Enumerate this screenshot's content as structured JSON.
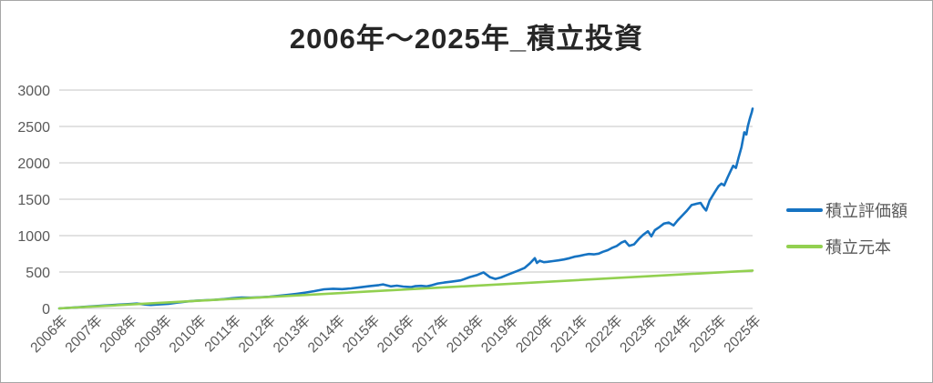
{
  "title": "2006年～2025年_積立投資",
  "legend": {
    "items": [
      {
        "label": "積立評価額",
        "color": "#1673C2"
      },
      {
        "label": "積立元本",
        "color": "#92D050"
      }
    ]
  },
  "chart_data": {
    "type": "line",
    "title": "2006年～2025年_積立投資",
    "xlabel": "",
    "ylabel": "",
    "ylim": [
      0,
      3000
    ],
    "yticks": [
      0,
      500,
      1000,
      1500,
      2000,
      2500,
      3000
    ],
    "xtick_labels": [
      "2006年",
      "2007年",
      "2008年",
      "2009年",
      "2010年",
      "2011年",
      "2012年",
      "2013年",
      "2014年",
      "2015年",
      "2016年",
      "2017年",
      "2018年",
      "2019年",
      "2020年",
      "2021年",
      "2022年",
      "2023年",
      "2024年",
      "2025年",
      "2025年"
    ],
    "grid": true,
    "legend_position": "right",
    "gridline_color": "#d9d9d9",
    "axis_text_color": "#595959",
    "series": [
      {
        "name": "積立評価額",
        "color": "#1673C2",
        "stroke_width": 2.6,
        "points": [
          [
            0.0,
            0
          ],
          [
            0.026,
            15
          ],
          [
            0.053,
            32
          ],
          [
            0.079,
            48
          ],
          [
            0.105,
            62
          ],
          [
            0.112,
            66
          ],
          [
            0.125,
            52
          ],
          [
            0.132,
            48
          ],
          [
            0.145,
            55
          ],
          [
            0.158,
            62
          ],
          [
            0.171,
            80
          ],
          [
            0.184,
            95
          ],
          [
            0.197,
            105
          ],
          [
            0.211,
            112
          ],
          [
            0.224,
            118
          ],
          [
            0.237,
            128
          ],
          [
            0.25,
            140
          ],
          [
            0.263,
            150
          ],
          [
            0.276,
            148
          ],
          [
            0.289,
            152
          ],
          [
            0.303,
            160
          ],
          [
            0.316,
            172
          ],
          [
            0.329,
            185
          ],
          [
            0.342,
            200
          ],
          [
            0.355,
            218
          ],
          [
            0.368,
            238
          ],
          [
            0.382,
            262
          ],
          [
            0.395,
            270
          ],
          [
            0.408,
            265
          ],
          [
            0.421,
            275
          ],
          [
            0.434,
            290
          ],
          [
            0.447,
            305
          ],
          [
            0.461,
            320
          ],
          [
            0.467,
            330
          ],
          [
            0.478,
            302
          ],
          [
            0.487,
            312
          ],
          [
            0.496,
            300
          ],
          [
            0.507,
            293
          ],
          [
            0.513,
            305
          ],
          [
            0.522,
            310
          ],
          [
            0.53,
            303
          ],
          [
            0.538,
            320
          ],
          [
            0.546,
            342
          ],
          [
            0.555,
            355
          ],
          [
            0.566,
            368
          ],
          [
            0.579,
            385
          ],
          [
            0.592,
            430
          ],
          [
            0.603,
            460
          ],
          [
            0.612,
            495
          ],
          [
            0.621,
            430
          ],
          [
            0.629,
            405
          ],
          [
            0.637,
            425
          ],
          [
            0.645,
            455
          ],
          [
            0.654,
            490
          ],
          [
            0.662,
            520
          ],
          [
            0.671,
            555
          ],
          [
            0.679,
            620
          ],
          [
            0.686,
            690
          ],
          [
            0.689,
            625
          ],
          [
            0.693,
            655
          ],
          [
            0.699,
            635
          ],
          [
            0.704,
            640
          ],
          [
            0.712,
            650
          ],
          [
            0.72,
            660
          ],
          [
            0.728,
            672
          ],
          [
            0.736,
            690
          ],
          [
            0.743,
            710
          ],
          [
            0.751,
            722
          ],
          [
            0.758,
            738
          ],
          [
            0.764,
            748
          ],
          [
            0.771,
            742
          ],
          [
            0.778,
            752
          ],
          [
            0.784,
            778
          ],
          [
            0.791,
            800
          ],
          [
            0.797,
            830
          ],
          [
            0.804,
            858
          ],
          [
            0.811,
            905
          ],
          [
            0.816,
            925
          ],
          [
            0.822,
            860
          ],
          [
            0.829,
            880
          ],
          [
            0.836,
            955
          ],
          [
            0.842,
            1010
          ],
          [
            0.849,
            1060
          ],
          [
            0.854,
            990
          ],
          [
            0.859,
            1075
          ],
          [
            0.866,
            1120
          ],
          [
            0.872,
            1165
          ],
          [
            0.879,
            1180
          ],
          [
            0.886,
            1140
          ],
          [
            0.892,
            1210
          ],
          [
            0.899,
            1280
          ],
          [
            0.905,
            1340
          ],
          [
            0.912,
            1420
          ],
          [
            0.918,
            1435
          ],
          [
            0.925,
            1450
          ],
          [
            0.929,
            1390
          ],
          [
            0.933,
            1345
          ],
          [
            0.938,
            1480
          ],
          [
            0.945,
            1590
          ],
          [
            0.951,
            1680
          ],
          [
            0.955,
            1715
          ],
          [
            0.959,
            1690
          ],
          [
            0.964,
            1800
          ],
          [
            0.968,
            1880
          ],
          [
            0.972,
            1960
          ],
          [
            0.976,
            1930
          ],
          [
            0.98,
            2080
          ],
          [
            0.984,
            2215
          ],
          [
            0.988,
            2420
          ],
          [
            0.991,
            2390
          ],
          [
            0.993,
            2500
          ],
          [
            0.996,
            2610
          ],
          [
            0.999,
            2700
          ],
          [
            1.0,
            2745
          ]
        ]
      },
      {
        "name": "積立元本",
        "color": "#92D050",
        "stroke_width": 2.6,
        "points": [
          [
            0.0,
            0
          ],
          [
            1.0,
            520
          ]
        ]
      }
    ]
  }
}
